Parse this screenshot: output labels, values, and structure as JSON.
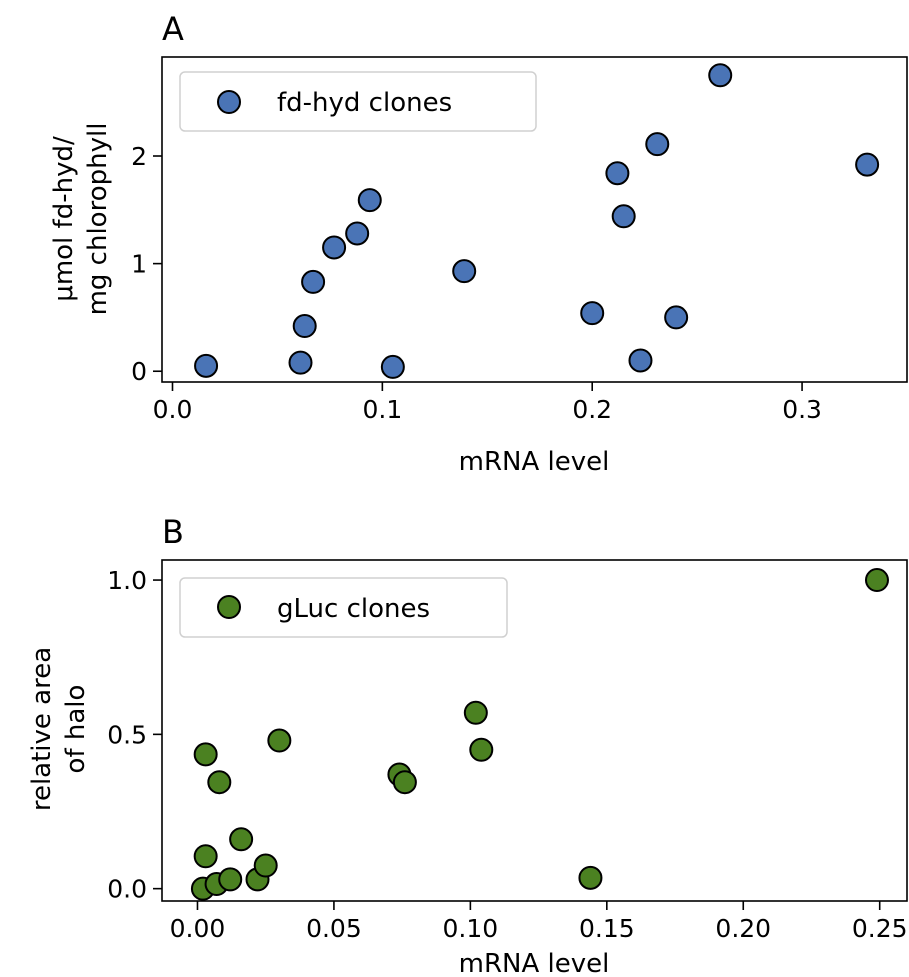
{
  "chart_data": [
    {
      "type": "scatter",
      "panel_label": "A",
      "xlabel": "mRNA level",
      "ylabel_lines": [
        "μmol fd-hyd/",
        "mg chlorophyll"
      ],
      "xlim": [
        -0.005,
        0.35
      ],
      "ylim": [
        -0.1,
        2.92
      ],
      "xticks": [
        0.0,
        0.1,
        0.2,
        0.3
      ],
      "xtick_labels": [
        "0.0",
        "0.1",
        "0.2",
        "0.3"
      ],
      "yticks": [
        0,
        1,
        2
      ],
      "ytick_labels": [
        "0",
        "1",
        "2"
      ],
      "grid": false,
      "legend_position": "upper-left",
      "series": [
        {
          "name": "fd-hyd clones",
          "color": "#4A74B6",
          "x": [
            0.016,
            0.061,
            0.063,
            0.067,
            0.077,
            0.088,
            0.094,
            0.105,
            0.139,
            0.2,
            0.212,
            0.215,
            0.223,
            0.231,
            0.24,
            0.261,
            0.331
          ],
          "y": [
            0.05,
            0.08,
            0.42,
            0.83,
            1.15,
            1.28,
            1.59,
            0.04,
            0.93,
            0.54,
            1.84,
            1.44,
            0.1,
            2.11,
            0.5,
            2.75,
            1.92
          ]
        }
      ]
    },
    {
      "type": "scatter",
      "panel_label": "B",
      "xlabel": "mRNA level",
      "ylabel_lines": [
        "relative area",
        "of halo"
      ],
      "xlim": [
        -0.013,
        0.26
      ],
      "ylim": [
        -0.04,
        1.065
      ],
      "xticks": [
        0.0,
        0.05,
        0.1,
        0.15,
        0.2,
        0.25
      ],
      "xtick_labels": [
        "0.00",
        "0.05",
        "0.10",
        "0.15",
        "0.20",
        "0.25"
      ],
      "yticks": [
        0.0,
        0.5,
        1.0
      ],
      "ytick_labels": [
        "0.0",
        "0.5",
        "1.0"
      ],
      "grid": false,
      "legend_position": "upper-left",
      "series": [
        {
          "name": "gLuc clones",
          "color": "#4B8121",
          "x": [
            0.002,
            0.003,
            0.003,
            0.007,
            0.008,
            0.012,
            0.016,
            0.022,
            0.025,
            0.03,
            0.074,
            0.076,
            0.102,
            0.104,
            0.144,
            0.249
          ],
          "y": [
            0.0,
            0.105,
            0.435,
            0.015,
            0.345,
            0.03,
            0.16,
            0.03,
            0.075,
            0.48,
            0.37,
            0.345,
            0.57,
            0.45,
            0.035,
            1.0
          ]
        }
      ]
    }
  ]
}
